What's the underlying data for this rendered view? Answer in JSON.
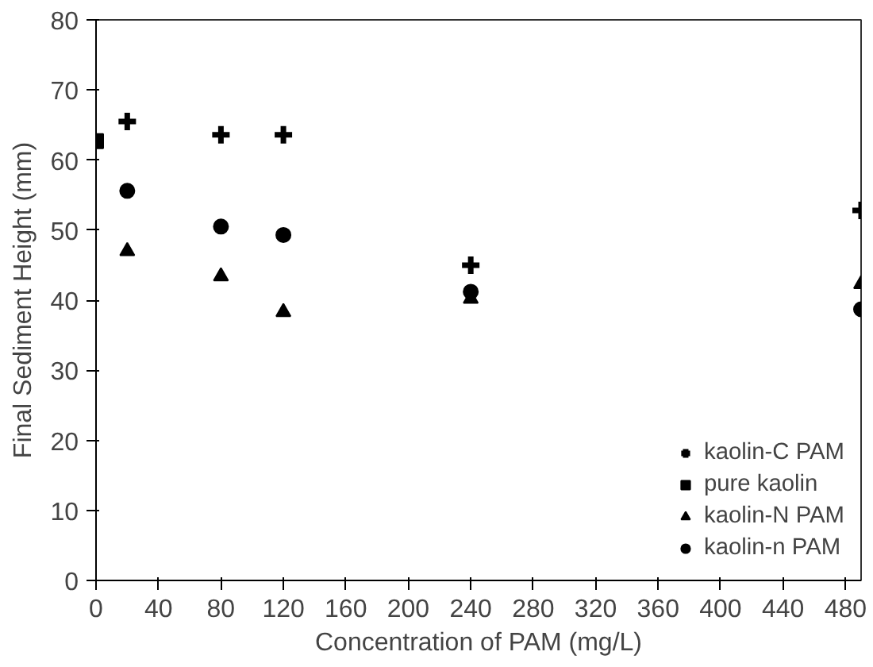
{
  "chart_data": {
    "type": "scatter",
    "xlabel": "Concentration of PAM (mg/L)",
    "ylabel": "Final Sediment Height (mm)",
    "xlim": [
      0,
      490
    ],
    "ylim": [
      0,
      80
    ],
    "xticks": [
      0,
      40,
      80,
      120,
      160,
      200,
      240,
      280,
      320,
      360,
      400,
      440,
      480
    ],
    "yticks": [
      0,
      10,
      20,
      30,
      40,
      50,
      60,
      70,
      80
    ],
    "grid": false,
    "legend": "bottom right",
    "series": [
      {
        "name": "kaolin-C PAM",
        "color": "#000000",
        "marker": "cross",
        "x": [
          20,
          80,
          120,
          240,
          490
        ],
        "values": [
          65.5,
          63.6,
          63.6,
          45,
          52.8
        ]
      },
      {
        "name": "pure kaolin",
        "color": "#000000",
        "marker": "square",
        "x": [
          0
        ],
        "values": [
          62.7
        ]
      },
      {
        "name": "kaolin-N PAM",
        "color": "#000000",
        "marker": "triangle",
        "x": [
          20,
          80,
          120,
          240,
          490
        ],
        "values": [
          47,
          43.4,
          38.3,
          40.2,
          42.3
        ]
      },
      {
        "name": "kaolin-n PAM",
        "color": "#000000",
        "marker": "circle",
        "x": [
          20,
          80,
          120,
          240,
          490
        ],
        "values": [
          55.6,
          50.5,
          49.3,
          41.2,
          38.7
        ]
      }
    ]
  }
}
